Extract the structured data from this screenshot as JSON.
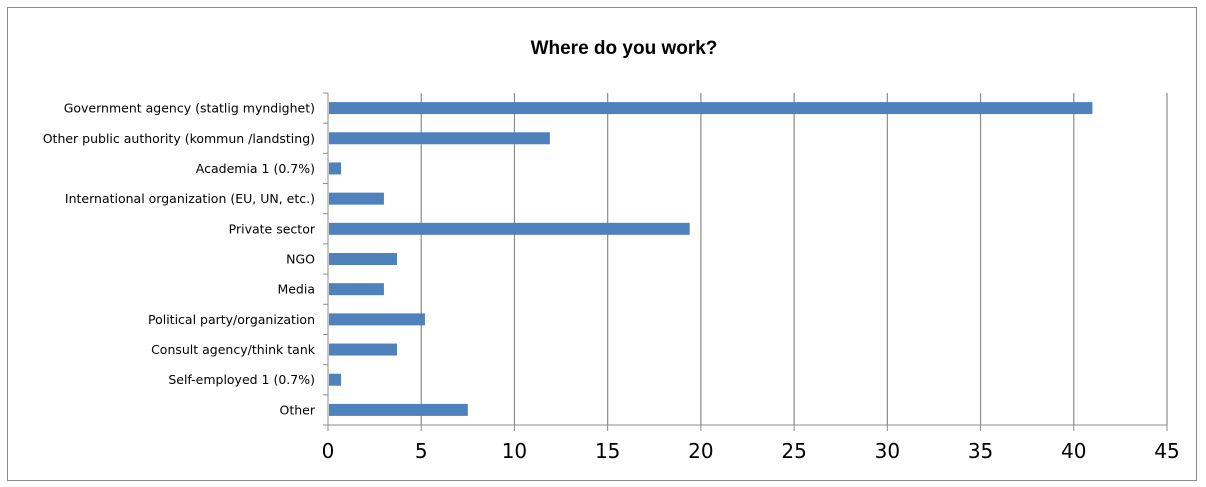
{
  "chart_data": {
    "type": "bar",
    "orientation": "horizontal",
    "title": "Where do you work?",
    "xlabel": "",
    "ylabel": "",
    "categories": [
      "Government agency (statlig myndighet)",
      "Other public authority (kommun /landsting)",
      "Academia 1 (0.7%)",
      "International organization (EU, UN, etc.)",
      "Private sector",
      "NGO",
      "Media",
      "Political party/organization",
      "Consult agency/think tank",
      "Self-employed 1 (0.7%)",
      "Other"
    ],
    "values": [
      41,
      11.9,
      0.7,
      3,
      19.4,
      3.7,
      3,
      5.2,
      3.7,
      0.7,
      7.5
    ],
    "xlim": [
      0,
      45
    ],
    "xticks": [
      0,
      5,
      10,
      15,
      20,
      25,
      30,
      35,
      40,
      45
    ],
    "grid": "vertical",
    "legend": "none",
    "bar_color": "#4f81bd",
    "grid_color": "#8c8c8c"
  }
}
